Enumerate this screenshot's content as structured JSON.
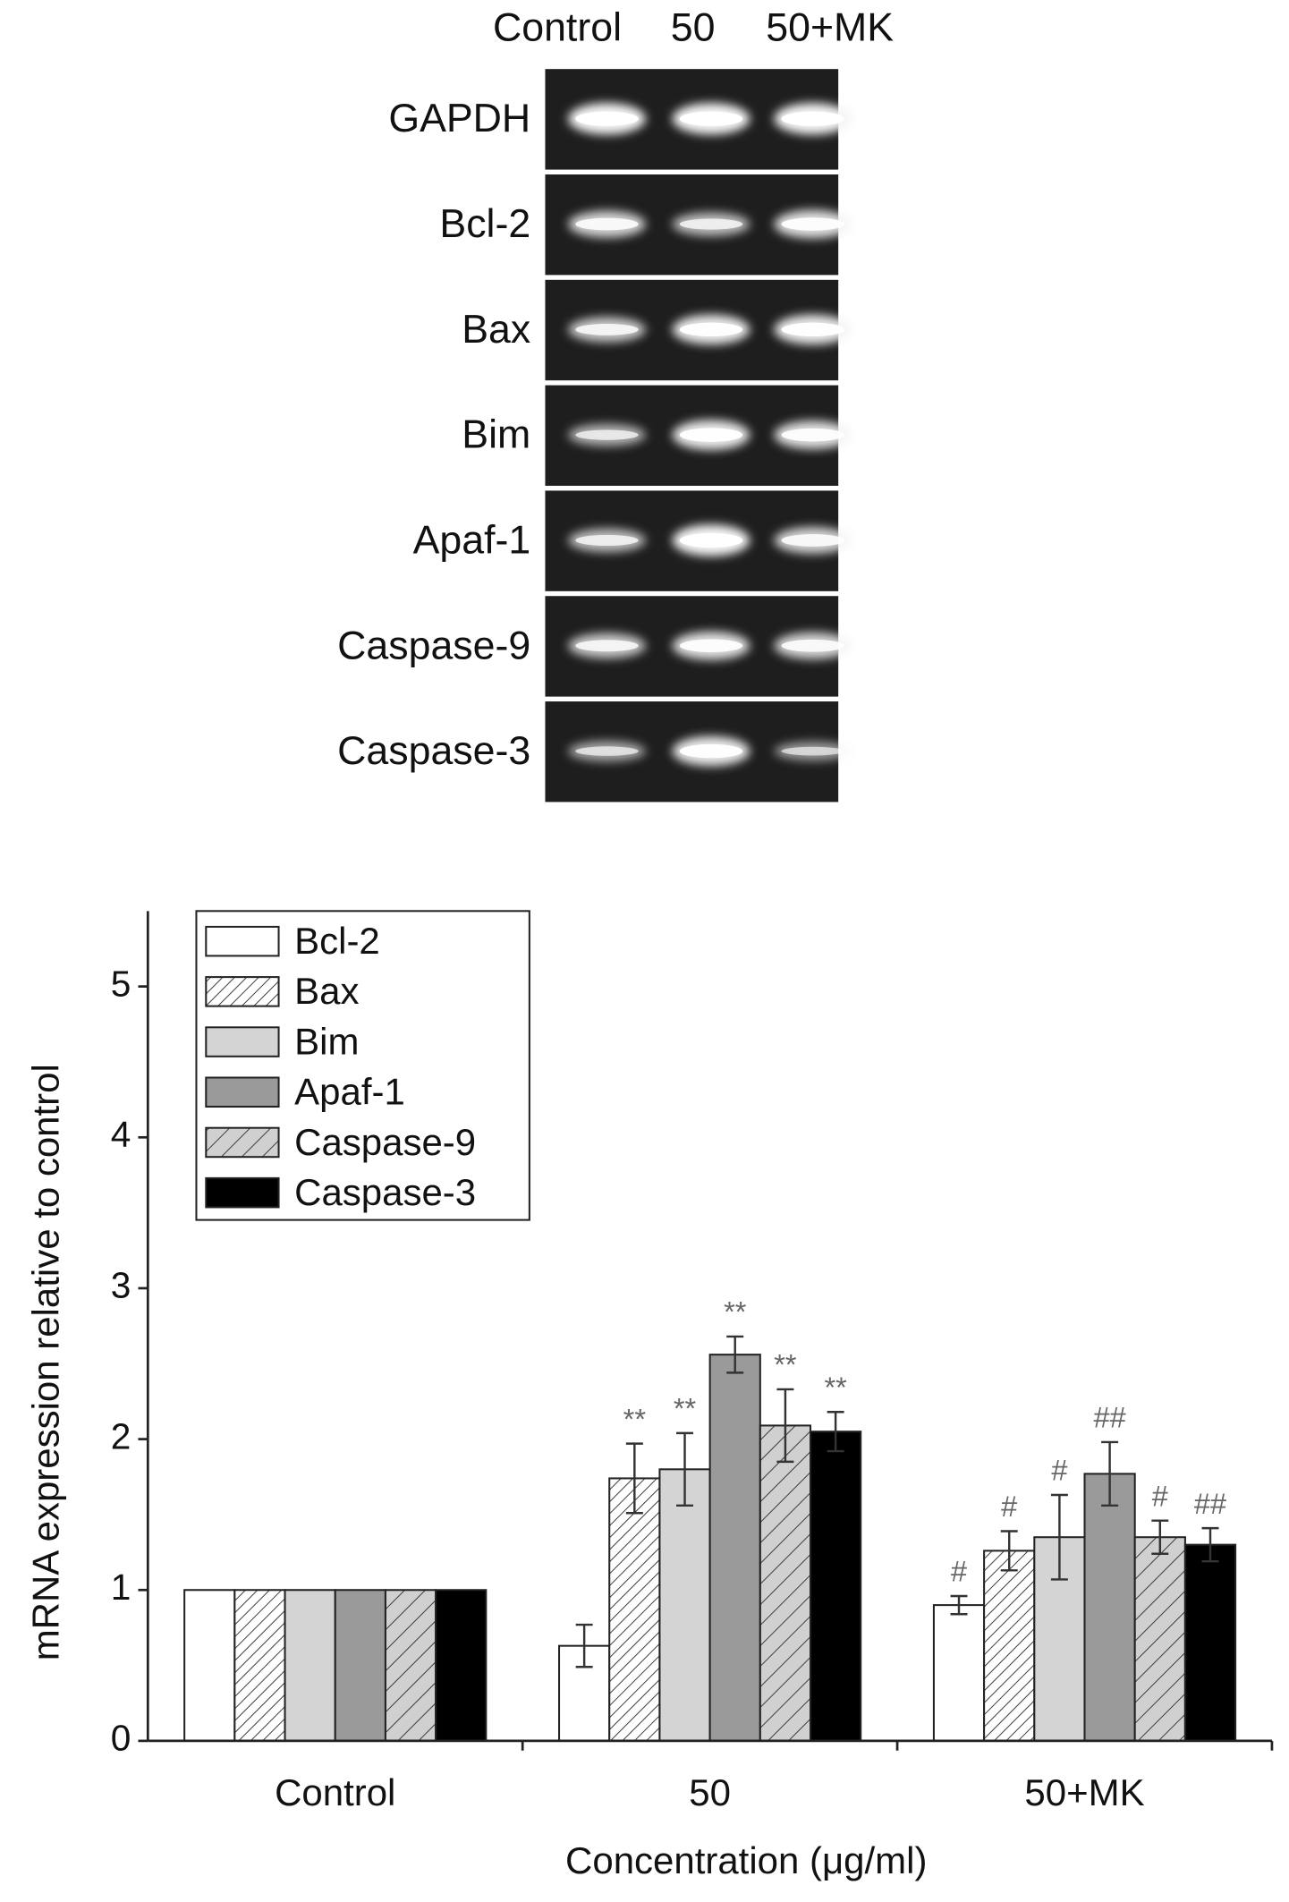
{
  "gel": {
    "lanes": [
      "Control",
      "50",
      "50+MK"
    ],
    "rows": [
      "GAPDH",
      "Bcl-2",
      "Bax",
      "Bim",
      "Apaf-1",
      "Caspase-9",
      "Caspase-3"
    ]
  },
  "chart_data": {
    "type": "bar",
    "y_label": "mRNA expression relative to control",
    "x_label": "Concentration (μg/ml)",
    "categories": [
      "Control",
      "50",
      "50+MK"
    ],
    "ylim": [
      0,
      5.5
    ],
    "yticks": [
      0,
      1,
      2,
      3,
      4,
      5
    ],
    "legend": "upper left",
    "series": [
      {
        "name": "Bcl-2",
        "color": "#ffffff",
        "hatch": false,
        "values": [
          1,
          0.63,
          0.9
        ],
        "errors": [
          null,
          0.14,
          0.06
        ],
        "annotations": [
          null,
          null,
          "#"
        ]
      },
      {
        "name": "Bax",
        "color": "#ffffff",
        "hatch": true,
        "values": [
          1,
          1.74,
          1.26
        ],
        "errors": [
          null,
          0.23,
          0.13
        ],
        "annotations": [
          null,
          "**",
          "#"
        ]
      },
      {
        "name": "Bim",
        "color": "#d4d4d4",
        "hatch": false,
        "values": [
          1,
          1.8,
          1.35
        ],
        "errors": [
          null,
          0.24,
          0.28
        ],
        "annotations": [
          null,
          "**",
          "#"
        ]
      },
      {
        "name": "Apaf-1",
        "color": "#9a9a9a",
        "hatch": false,
        "values": [
          1,
          2.56,
          1.77
        ],
        "errors": [
          null,
          0.12,
          0.21
        ],
        "annotations": [
          null,
          "**",
          "##"
        ]
      },
      {
        "name": "Caspase-9",
        "color": "#d0d0d0",
        "hatch": true,
        "values": [
          1,
          2.09,
          1.35
        ],
        "errors": [
          null,
          0.24,
          0.11
        ],
        "annotations": [
          null,
          "**",
          "#"
        ]
      },
      {
        "name": "Caspase-3",
        "color": "#000000",
        "hatch": false,
        "values": [
          1,
          2.05,
          1.3
        ],
        "errors": [
          null,
          0.13,
          0.11
        ],
        "annotations": [
          null,
          "**",
          "##"
        ]
      }
    ]
  }
}
